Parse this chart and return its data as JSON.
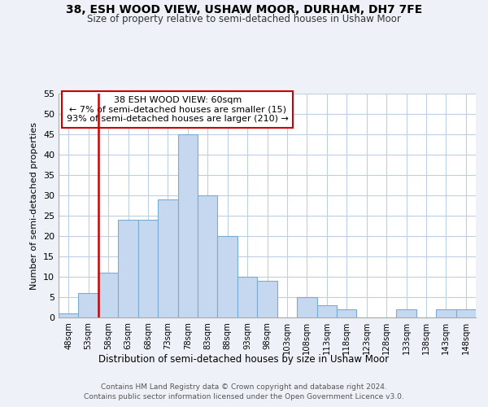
{
  "title1": "38, ESH WOOD VIEW, USHAW MOOR, DURHAM, DH7 7FE",
  "title2": "Size of property relative to semi-detached houses in Ushaw Moor",
  "bar_labels": [
    "48sqm",
    "53sqm",
    "58sqm",
    "63sqm",
    "68sqm",
    "73sqm",
    "78sqm",
    "83sqm",
    "88sqm",
    "93sqm",
    "98sqm",
    "103sqm",
    "108sqm",
    "113sqm",
    "118sqm",
    "123sqm",
    "128sqm",
    "133sqm",
    "138sqm",
    "143sqm",
    "148sqm"
  ],
  "bar_values": [
    1,
    6,
    11,
    24,
    24,
    29,
    45,
    30,
    20,
    10,
    9,
    0,
    5,
    3,
    2,
    0,
    0,
    2,
    0,
    2,
    2
  ],
  "bar_color_fill": "#c5d8ef",
  "bar_color_edge": "#7aadd4",
  "vline_x_index": 2,
  "vline_color": "#cc0000",
  "ylabel": "Number of semi-detached properties",
  "xlabel": "Distribution of semi-detached houses by size in Ushaw Moor",
  "ylim": [
    0,
    55
  ],
  "yticks": [
    0,
    5,
    10,
    15,
    20,
    25,
    30,
    35,
    40,
    45,
    50,
    55
  ],
  "annotation_title": "38 ESH WOOD VIEW: 60sqm",
  "annotation_line1": "← 7% of semi-detached houses are smaller (15)",
  "annotation_line2": "93% of semi-detached houses are larger (210) →",
  "footer1": "Contains HM Land Registry data © Crown copyright and database right 2024.",
  "footer2": "Contains public sector information licensed under the Open Government Licence v3.0.",
  "bg_color": "#eef2f8",
  "plot_bg_color": "#ffffff",
  "grid_color": "#c0cfe0"
}
